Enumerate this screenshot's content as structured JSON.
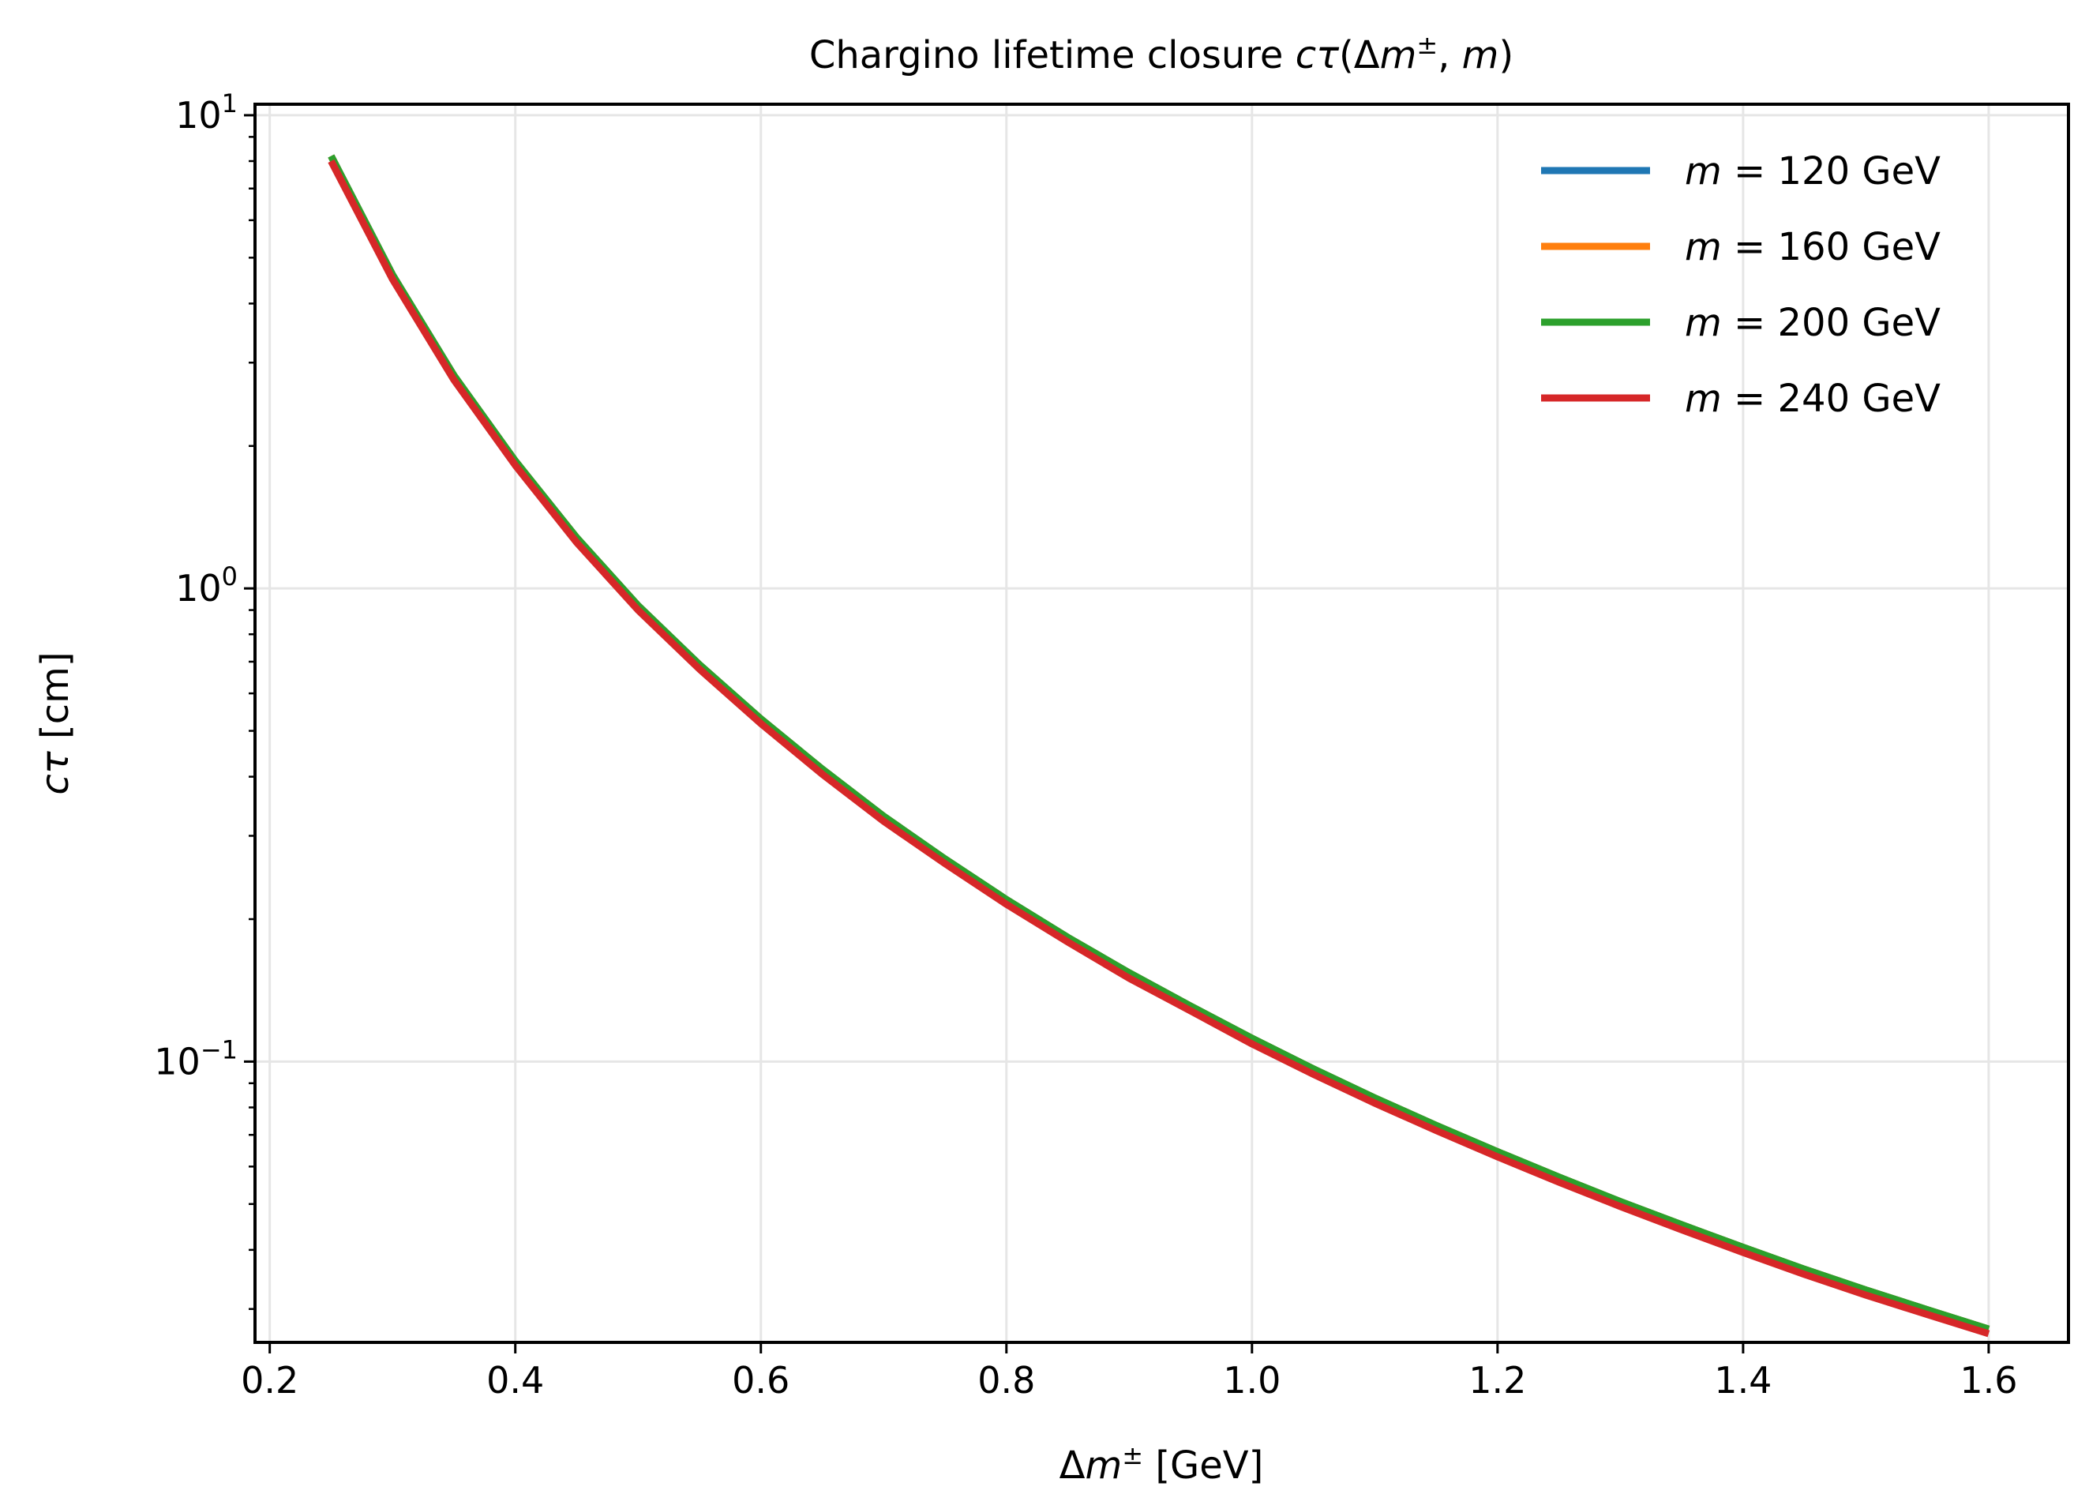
{
  "chart_data": {
    "type": "line",
    "title": {
      "pre": "Chargino lifetime closure ",
      "c": "c",
      "tau": "τ",
      "open": "(Δ",
      "m1": "m",
      "pm": "±",
      "comma": ", ",
      "m2": "m",
      "close": ")"
    },
    "xlabel": {
      "delta": "Δ",
      "m": "m",
      "pm": "±",
      "unit": " [GeV]"
    },
    "ylabel": {
      "c": "c",
      "tau": "τ",
      "unit": " [cm]"
    },
    "x_scale": "linear",
    "y_scale": "log",
    "xlim": [
      0.188,
      1.665
    ],
    "ylim": [
      0.0255,
      10.55
    ],
    "grid": true,
    "legend_position": "top-right",
    "x_ticks": [
      {
        "value": 0.2,
        "label": "0.2"
      },
      {
        "value": 0.4,
        "label": "0.4"
      },
      {
        "value": 0.6,
        "label": "0.6"
      },
      {
        "value": 0.8,
        "label": "0.8"
      },
      {
        "value": 1.0,
        "label": "1.0"
      },
      {
        "value": 1.2,
        "label": "1.2"
      },
      {
        "value": 1.4,
        "label": "1.4"
      },
      {
        "value": 1.6,
        "label": "1.6"
      }
    ],
    "y_ticks": [
      {
        "value": 10,
        "base": "10",
        "exp": "1"
      },
      {
        "value": 1,
        "base": "10",
        "exp": "0"
      },
      {
        "value": 0.1,
        "base": "10",
        "exp": "−1"
      }
    ],
    "x": [
      0.25,
      0.3,
      0.35,
      0.4,
      0.45,
      0.5,
      0.55,
      0.6,
      0.65,
      0.7,
      0.75,
      0.8,
      0.85,
      0.9,
      0.95,
      1.0,
      1.05,
      1.1,
      1.15,
      1.2,
      1.25,
      1.3,
      1.35,
      1.4,
      1.45,
      1.5,
      1.55,
      1.6
    ],
    "series": [
      {
        "name_m": "m",
        "name_eq": " = ",
        "name_val": "120 GeV",
        "color": "#1f77b4",
        "values": [
          8.2,
          4.6,
          2.82,
          1.86,
          1.28,
          0.92,
          0.69,
          0.53,
          0.415,
          0.33,
          0.268,
          0.22,
          0.183,
          0.154,
          0.131,
          0.112,
          0.0965,
          0.0838,
          0.0733,
          0.0645,
          0.057,
          0.0506,
          0.0452,
          0.0405,
          0.0364,
          0.0329,
          0.0299,
          0.0272
        ]
      },
      {
        "name_m": "m",
        "name_eq": " = ",
        "name_val": "160 GeV",
        "color": "#ff7f0e",
        "values": [
          8.2,
          4.6,
          2.82,
          1.86,
          1.28,
          0.92,
          0.69,
          0.53,
          0.415,
          0.33,
          0.268,
          0.22,
          0.183,
          0.154,
          0.131,
          0.112,
          0.0965,
          0.0838,
          0.0733,
          0.0645,
          0.057,
          0.0506,
          0.0452,
          0.0405,
          0.0364,
          0.0329,
          0.0299,
          0.0272
        ]
      },
      {
        "name_m": "m",
        "name_eq": " = ",
        "name_val": "200 GeV",
        "color": "#2ca02c",
        "values": [
          8.2,
          4.6,
          2.82,
          1.86,
          1.28,
          0.92,
          0.69,
          0.53,
          0.415,
          0.33,
          0.268,
          0.22,
          0.183,
          0.154,
          0.131,
          0.112,
          0.0965,
          0.0838,
          0.0733,
          0.0645,
          0.057,
          0.0506,
          0.0452,
          0.0405,
          0.0364,
          0.0329,
          0.0299,
          0.0272
        ]
      },
      {
        "name_m": "m",
        "name_eq": " = ",
        "name_val": "240 GeV",
        "color": "#d62728",
        "values": [
          8.0,
          4.5,
          2.76,
          1.82,
          1.25,
          0.9,
          0.675,
          0.518,
          0.405,
          0.322,
          0.262,
          0.215,
          0.179,
          0.15,
          0.128,
          0.109,
          0.094,
          0.0817,
          0.0715,
          0.0629,
          0.0556,
          0.0494,
          0.0441,
          0.0395,
          0.0355,
          0.0321,
          0.0292,
          0.0266
        ]
      }
    ]
  }
}
